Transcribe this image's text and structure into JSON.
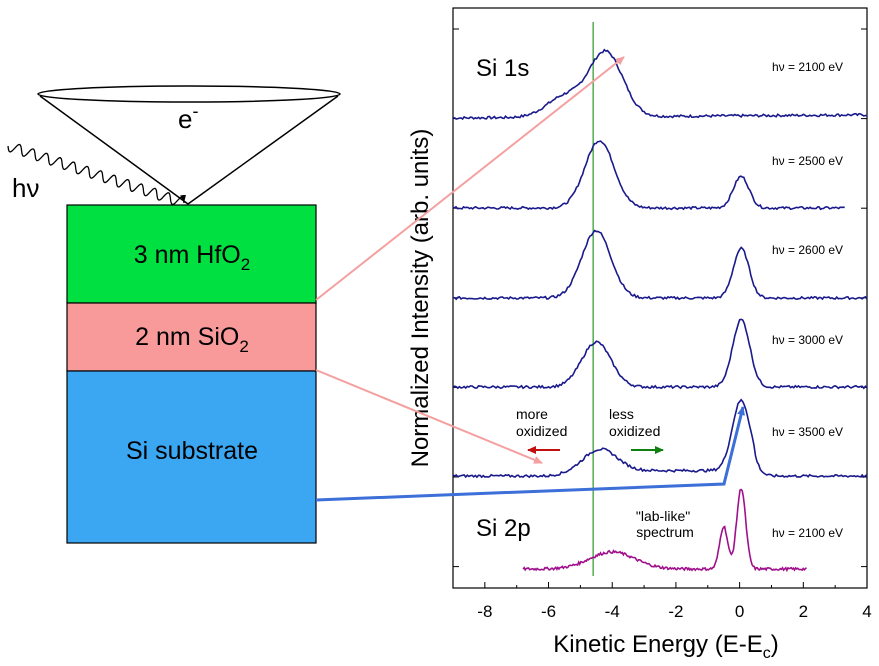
{
  "diagram": {
    "electron_label": "e",
    "electron_sup": "-",
    "photon_label": "hν",
    "layers": [
      {
        "text": "3 nm HfO",
        "sub": "2",
        "color": "#00e040"
      },
      {
        "text": "2 nm SiO",
        "sub": "2",
        "color": "#f99a9a"
      },
      {
        "text": "Si substrate",
        "sub": "",
        "color": "#3ba7f2"
      }
    ]
  },
  "chart_data": {
    "type": "line",
    "xlabel": "Kinetic Energy (E-E",
    "xlabel_sub": "c",
    "xlabel_end": ")",
    "ylabel": "Normalized Intensity (arb. units)",
    "xlim": [
      -9,
      4
    ],
    "xticks": [
      -8,
      -6,
      -4,
      -2,
      0,
      2,
      4
    ],
    "reference_line_x": -4.6,
    "line_colors": {
      "si1s": "#1a1a8c",
      "si2p": "#a0108c",
      "ref": "#008000",
      "arrow_pink": "#f4a0a0",
      "arrow_blue": "#3c6fd8"
    },
    "panel_labels": {
      "si1s": "Si 1s",
      "si2p": "Si 2p"
    },
    "annotations": {
      "more_oxidized": [
        "more",
        "oxidized"
      ],
      "less_oxidized": [
        "less",
        "oxidized"
      ],
      "lab_like": [
        "\"lab-like\"",
        "spectrum"
      ]
    },
    "series": [
      {
        "name": "hν = 2100 eV",
        "group": "si1s",
        "xrange": [
          -9,
          4
        ],
        "baseline": 0.2,
        "peaks": [
          [
            -4.2,
            0.0,
            0.7
          ]
        ],
        "shoulder": [
          [
            -5.2,
            0.24,
            0.7
          ]
        ]
      },
      {
        "name": "hν = 2500 eV",
        "group": "si1s",
        "xrange": [
          -9,
          3.3
        ],
        "baseline": 0.25,
        "peaks": [
          [
            -4.4,
            0.75,
            0.65
          ],
          [
            0.05,
            0.35,
            0.35
          ]
        ],
        "shoulder": []
      },
      {
        "name": "hν = 2600 eV",
        "group": "si1s",
        "xrange": [
          -9,
          4
        ],
        "baseline": 0.25,
        "peaks": [
          [
            -4.5,
            0.75,
            0.65
          ],
          [
            0.05,
            0.55,
            0.35
          ]
        ],
        "shoulder": []
      },
      {
        "name": "hν = 3000 eV",
        "group": "si1s",
        "xrange": [
          -9,
          4
        ],
        "baseline": 0.25,
        "peaks": [
          [
            -4.5,
            0.5,
            0.65
          ],
          [
            0.05,
            0.75,
            0.38
          ]
        ],
        "shoulder": []
      },
      {
        "name": "hν = 3500 eV",
        "group": "si1s",
        "xrange": [
          -9,
          4
        ],
        "baseline": 0.0,
        "peaks": [
          [
            -4.4,
            0.25,
            0.75
          ],
          [
            0.05,
            0.78,
            0.4
          ]
        ],
        "shoulder": []
      },
      {
        "name": "hν = 2100 eV",
        "group": "si2p",
        "xrange": [
          -6.8,
          2.1
        ],
        "baseline": 0.0,
        "peaks": [
          [
            -4.0,
            0.18,
            1.0
          ],
          [
            -0.5,
            0.45,
            0.18
          ],
          [
            0.05,
            0.85,
            0.2
          ]
        ],
        "shoulder": []
      }
    ]
  }
}
